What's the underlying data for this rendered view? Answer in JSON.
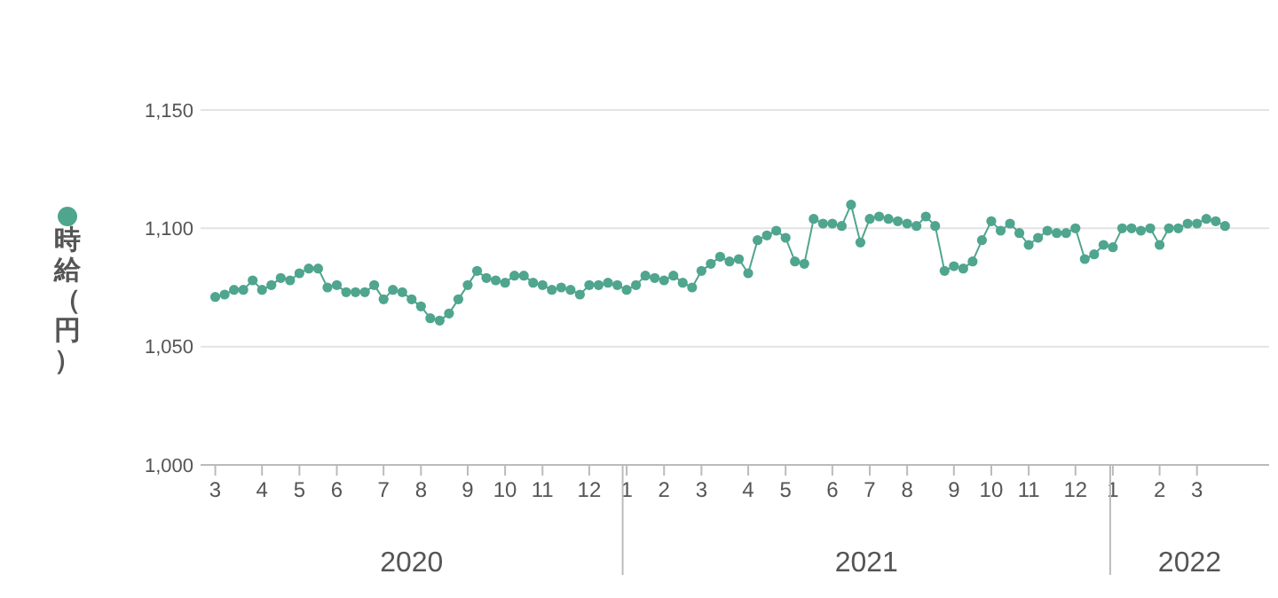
{
  "chart_data": {
    "type": "line",
    "ylabel": "時給（円）",
    "grid": "y",
    "marker": "circle",
    "line_style": "solid",
    "xlim": [
      "2020-02-20",
      "2022-04-30"
    ],
    "ylim": [
      1000,
      1150
    ],
    "yticks": [
      {
        "value": 1000,
        "label": "1,000"
      },
      {
        "value": 1050,
        "label": "1,050"
      },
      {
        "value": 1100,
        "label": "1,100"
      },
      {
        "value": 1150,
        "label": "1,150"
      }
    ],
    "xticks": [
      {
        "value": "2020-03-02",
        "label": "3"
      },
      {
        "value": "2020-04-06",
        "label": "4"
      },
      {
        "value": "2020-05-04",
        "label": "5"
      },
      {
        "value": "2020-06-01",
        "label": "6"
      },
      {
        "value": "2020-07-06",
        "label": "7"
      },
      {
        "value": "2020-08-03",
        "label": "8"
      },
      {
        "value": "2020-09-07",
        "label": "9"
      },
      {
        "value": "2020-10-05",
        "label": "10"
      },
      {
        "value": "2020-11-02",
        "label": "11"
      },
      {
        "value": "2020-12-07",
        "label": "12"
      },
      {
        "value": "2021-01-04",
        "label": "1"
      },
      {
        "value": "2021-02-01",
        "label": "2"
      },
      {
        "value": "2021-03-01",
        "label": "3"
      },
      {
        "value": "2021-04-05",
        "label": "4"
      },
      {
        "value": "2021-05-03",
        "label": "5"
      },
      {
        "value": "2021-06-07",
        "label": "6"
      },
      {
        "value": "2021-07-05",
        "label": "7"
      },
      {
        "value": "2021-08-02",
        "label": "8"
      },
      {
        "value": "2021-09-06",
        "label": "9"
      },
      {
        "value": "2021-10-04",
        "label": "10"
      },
      {
        "value": "2021-11-01",
        "label": "11"
      },
      {
        "value": "2021-12-06",
        "label": "12"
      },
      {
        "value": "2022-01-03",
        "label": "1"
      },
      {
        "value": "2022-02-07",
        "label": "2"
      },
      {
        "value": "2022-03-07",
        "label": "3"
      }
    ],
    "annotations": [
      "2020",
      "2021",
      "2022"
    ],
    "x": [
      "2020-03-02",
      "2020-03-09",
      "2020-03-16",
      "2020-03-23",
      "2020-03-30",
      "2020-04-06",
      "2020-04-13",
      "2020-04-20",
      "2020-04-27",
      "2020-05-04",
      "2020-05-11",
      "2020-05-18",
      "2020-05-25",
      "2020-06-01",
      "2020-06-08",
      "2020-06-15",
      "2020-06-22",
      "2020-06-29",
      "2020-07-06",
      "2020-07-13",
      "2020-07-20",
      "2020-07-27",
      "2020-08-03",
      "2020-08-10",
      "2020-08-17",
      "2020-08-24",
      "2020-08-31",
      "2020-09-07",
      "2020-09-14",
      "2020-09-21",
      "2020-09-28",
      "2020-10-05",
      "2020-10-12",
      "2020-10-19",
      "2020-10-26",
      "2020-11-02",
      "2020-11-09",
      "2020-11-16",
      "2020-11-23",
      "2020-11-30",
      "2020-12-07",
      "2020-12-14",
      "2020-12-21",
      "2020-12-28",
      "2021-01-04",
      "2021-01-11",
      "2021-01-18",
      "2021-01-25",
      "2021-02-01",
      "2021-02-08",
      "2021-02-15",
      "2021-02-22",
      "2021-03-01",
      "2021-03-08",
      "2021-03-15",
      "2021-03-22",
      "2021-03-29",
      "2021-04-05",
      "2021-04-12",
      "2021-04-19",
      "2021-04-26",
      "2021-05-03",
      "2021-05-10",
      "2021-05-17",
      "2021-05-24",
      "2021-05-31",
      "2021-06-07",
      "2021-06-14",
      "2021-06-21",
      "2021-06-28",
      "2021-07-05",
      "2021-07-12",
      "2021-07-19",
      "2021-07-26",
      "2021-08-02",
      "2021-08-09",
      "2021-08-16",
      "2021-08-23",
      "2021-08-30",
      "2021-09-06",
      "2021-09-13",
      "2021-09-20",
      "2021-09-27",
      "2021-10-04",
      "2021-10-11",
      "2021-10-18",
      "2021-10-25",
      "2021-11-01",
      "2021-11-08",
      "2021-11-15",
      "2021-11-22",
      "2021-11-29",
      "2021-12-06",
      "2021-12-13",
      "2021-12-20",
      "2021-12-27",
      "2022-01-03",
      "2022-01-10",
      "2022-01-17",
      "2022-01-24",
      "2022-01-31",
      "2022-02-07",
      "2022-02-14",
      "2022-02-21",
      "2022-02-28",
      "2022-03-07",
      "2022-03-14",
      "2022-03-21",
      "2022-03-28"
    ],
    "series": [
      {
        "color": "#4fa58e",
        "values": [
          1071,
          1072,
          1074,
          1074,
          1078,
          1074,
          1076,
          1079,
          1078,
          1081,
          1083,
          1083,
          1075,
          1076,
          1073,
          1073,
          1073,
          1076,
          1070,
          1074,
          1073,
          1070,
          1067,
          1062,
          1061,
          1064,
          1070,
          1076,
          1082,
          1079,
          1078,
          1077,
          1080,
          1080,
          1077,
          1076,
          1074,
          1075,
          1074,
          1072,
          1076,
          1076,
          1077,
          1076,
          1074,
          1076,
          1080,
          1079,
          1078,
          1080,
          1077,
          1075,
          1082,
          1085,
          1088,
          1086,
          1087,
          1081,
          1095,
          1097,
          1099,
          1096,
          1086,
          1085,
          1104,
          1102,
          1102,
          1101,
          1110,
          1094,
          1104,
          1105,
          1104,
          1103,
          1102,
          1101,
          1105,
          1101,
          1082,
          1084,
          1083,
          1086,
          1095,
          1103,
          1099,
          1102,
          1098,
          1093,
          1096,
          1099,
          1098,
          1098,
          1100,
          1087,
          1089,
          1093,
          1092,
          1100,
          1100,
          1099,
          1100,
          1093,
          1100,
          1100,
          1102,
          1102,
          1104,
          1103,
          1101
        ]
      }
    ]
  }
}
